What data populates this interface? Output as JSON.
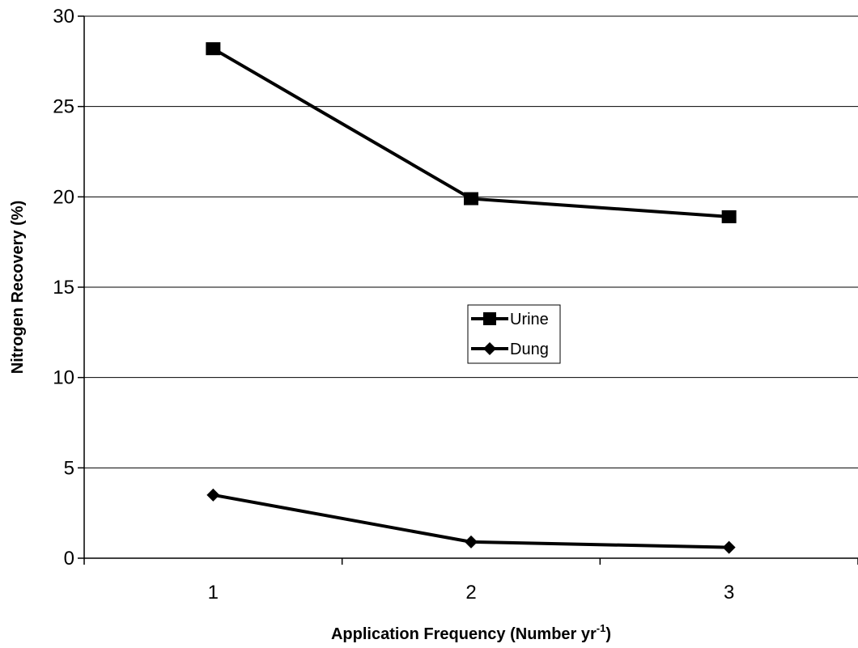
{
  "chart_data": {
    "type": "line",
    "title": "",
    "xlabel": "Application Frequency (Number yr",
    "xlabel_sup": "-1",
    "xlabel_end": ")",
    "ylabel": "Nitrogen Recovery (%)",
    "categories": [
      "1",
      "2",
      "3"
    ],
    "x": [
      1,
      2,
      3
    ],
    "ylim": [
      0,
      30
    ],
    "yticks": [
      0,
      5,
      10,
      15,
      20,
      25,
      30
    ],
    "grid": "horizontal",
    "legend_position": "center",
    "series": [
      {
        "name": "Urine",
        "marker": "square",
        "color": "#000000",
        "values": [
          28.2,
          19.9,
          18.9
        ]
      },
      {
        "name": "Dung",
        "marker": "diamond",
        "color": "#000000",
        "values": [
          3.5,
          0.9,
          0.6
        ]
      }
    ]
  }
}
